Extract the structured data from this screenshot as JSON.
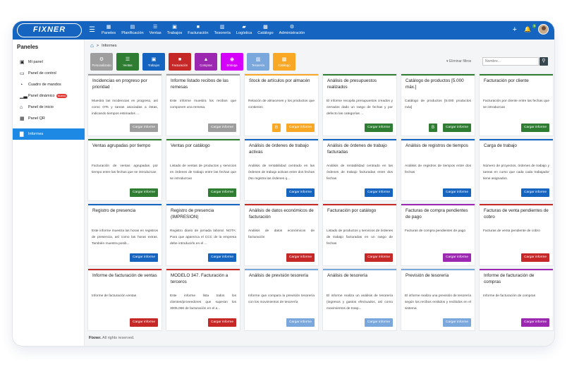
{
  "app": {
    "brand": "FIXNER"
  },
  "topbar": {
    "nav": [
      {
        "label": "Paneles",
        "icon": "grid-icon"
      },
      {
        "label": "Planificación",
        "icon": "calendar-icon"
      },
      {
        "label": "Ventas",
        "icon": "handshake-icon"
      },
      {
        "label": "Trabajos",
        "icon": "briefcase-icon"
      },
      {
        "label": "Facturación",
        "icon": "invoice-icon"
      },
      {
        "label": "Tesorería",
        "icon": "money-icon"
      },
      {
        "label": "Logística",
        "icon": "truck-icon"
      },
      {
        "label": "Catálogo",
        "icon": "catalog-icon"
      },
      {
        "label": "Administración",
        "icon": "gear-icon"
      }
    ],
    "notifications_badge": "9"
  },
  "sidebar": {
    "title": "Paneles",
    "items": [
      {
        "label": "Mi panel",
        "icon": "panel-icon"
      },
      {
        "label": "Panel de control",
        "icon": "monitor-icon"
      },
      {
        "label": "Cuadro de mandos",
        "icon": "gauge-icon"
      },
      {
        "label": "Panel dinámico",
        "icon": "chart-icon",
        "badge": "Nuevo"
      },
      {
        "label": "Panel de inicio",
        "icon": "home-icon"
      },
      {
        "label": "Panel QR",
        "icon": "qr-icon"
      },
      {
        "label": "Informes",
        "icon": "bar-chart-icon",
        "active": true
      }
    ]
  },
  "breadcrumb": {
    "current": "Informes"
  },
  "filters": [
    {
      "label": "Personalizado",
      "color": "#9e9e9e"
    },
    {
      "label": "Ventas",
      "color": "#2e7d32"
    },
    {
      "label": "Trabajos",
      "color": "#1565c0"
    },
    {
      "label": "Facturación",
      "color": "#c62828"
    },
    {
      "label": "Compras",
      "color": "#9c27b0"
    },
    {
      "label": "Entrega",
      "color": "#d500f9"
    },
    {
      "label": "Tesorería",
      "color": "#7aa7dc"
    },
    {
      "label": "Catálogo",
      "color": "#f9a825"
    }
  ],
  "clear_filters": "Eliminar filtros",
  "search_placeholder": "Nombre...",
  "button_label": "Cargar informe",
  "colors": {
    "personalizado": "#9e9e9e",
    "ventas": "#2e7d32",
    "trabajos": "#1565c0",
    "facturacion": "#c62828",
    "compras": "#9c27b0",
    "tesoreria": "#7aa7dc",
    "catalogo": "#f9a825"
  },
  "cards": [
    {
      "title": "Incidencias en progreso por prioridad",
      "desc": "Muestra las incidencias en progreso, así como OTs y tareas asociadas a éstas, indicando tiempos estimados ...",
      "category": "personalizado"
    },
    {
      "title": "Informe listado recibos de las remesas",
      "desc": "Este informe muestra los recibos que componen una remesa.",
      "category": "personalizado"
    },
    {
      "title": "Stock de artículos por almacén",
      "desc": "Relación de almacenes y los productos que contienen",
      "category": "catalogo",
      "minor": "B"
    },
    {
      "title": "Análisis de presupuestos realizados",
      "desc": "El informe recopila presupuestos creados y cerrados dado un rango de fechas y por defecto las categorías ...",
      "category": "ventas"
    },
    {
      "title": "Catálogo de productos [5.000 máx.]",
      "desc": "Catálogo de productos [5.000 productos máx]",
      "category": "ventas",
      "minor": "B"
    },
    {
      "title": "Facturación por cliente",
      "desc": "Facturación por cliente entre las fechas que se introduzcan",
      "category": "ventas"
    },
    {
      "title": "Ventas agrupadas por tiempo",
      "desc": "Facturación de ventas agrupadas por tiempo entre las fechas que se introduzcan",
      "category": "ventas"
    },
    {
      "title": "Ventas por catálogo",
      "desc": "Listado de ventas de productos y servicios en órdenes de trabajo entre las fechas que se introduzcan",
      "category": "ventas"
    },
    {
      "title": "Análisis de órdenes de trabajo activas",
      "desc": "Análisis de rentabilidad centrado en las órdenes de trabajo activas entre dos fechas (No registra las órdenes q...",
      "category": "trabajos"
    },
    {
      "title": "Análisis de órdenes de trabajo facturadas",
      "desc": "Análisis de rentabilidad centrado en las órdenes de trabajo facturadas entre dos fechas",
      "category": "trabajos"
    },
    {
      "title": "Análisis de registros de tiempos",
      "desc": "Análisis de registros de tiempos entre dos fechas",
      "category": "trabajos"
    },
    {
      "title": "Carga de trabajo",
      "desc": "Número de proyectos, órdenes de trabajo y tareas en curso que cada cada trabajador tiene asignados.",
      "category": "trabajos"
    },
    {
      "title": "Registro de presencia",
      "desc": "Este informe muestra las horas en registros de presencia, así como las horas extras. También muestra posib...",
      "category": "trabajos"
    },
    {
      "title": "Registro de presencia (IMPRESION)",
      "desc": "Registro diario de jornada laboral. NOTA: Para que aparezca el CCC de la empresa debe introducirlo en el ...",
      "category": "trabajos"
    },
    {
      "title": "Análisis de datos económicos de facturación",
      "desc": "Análisis de datos económicos de facturación",
      "category": "facturacion"
    },
    {
      "title": "Facturación por catálogo",
      "desc": "Listado de productos y servicios de órdenes de trabajo facturadas en un rango de fechas",
      "category": "facturacion"
    },
    {
      "title": "Facturas de compra pendientes de pago",
      "desc": "Facturas de compra pendientes de pago",
      "category": "compras"
    },
    {
      "title": "Facturas de venta pendientes de cobro",
      "desc": "Facturas de venta pendiente de cobro",
      "category": "facturacion"
    },
    {
      "title": "Informe de facturación de ventas",
      "desc": "Informe de facturación ventas",
      "category": "facturacion"
    },
    {
      "title": "MODELO 347. Facturación a terceros",
      "desc": "Este informe lista todos los clientes/proveedores que superan los 3005,06€ de facturación en el a...",
      "category": "facturacion"
    },
    {
      "title": "Análisis de previsión tesorería",
      "desc": "Informe que compara la previsión tesorería con los movimientos de tesorería",
      "category": "tesoreria"
    },
    {
      "title": "Análisis de tesorería",
      "desc": "El informe realiza un análisis de tesorería (ingresos y gastos efectuados, así como movimientos de trasp...",
      "category": "tesoreria"
    },
    {
      "title": "Previsión de tesorería",
      "desc": "El informe realiza una previsión de tesorería según los recibos emitidos y recibidos en el sistema",
      "category": "tesoreria"
    },
    {
      "title": "Informe de facturación de compras",
      "desc": "Informe de facturación de compras",
      "category": "compras"
    }
  ],
  "footer": {
    "brand": "Fixner.",
    "text": "All rights reserved."
  }
}
